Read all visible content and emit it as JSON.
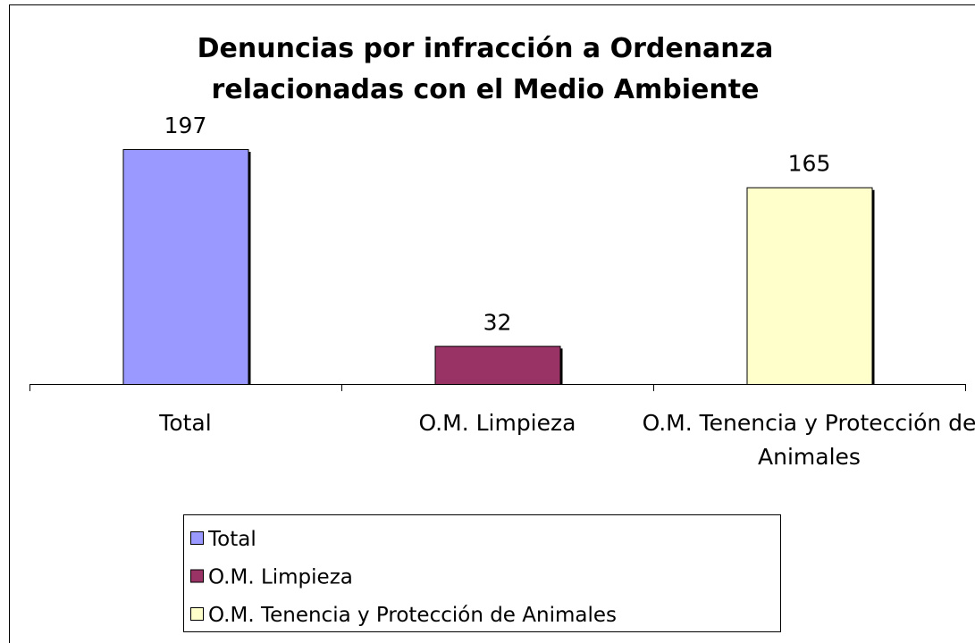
{
  "chart_data": {
    "type": "bar",
    "title": "Denuncias por infracción a Ordenanza relacionadas con el Medio Ambiente",
    "categories": [
      "Total",
      "O.M. Limpieza",
      "O.M. Tenencia y Protección de Animales"
    ],
    "values": [
      197,
      32,
      165
    ],
    "colors": [
      "#9999ff",
      "#993366",
      "#ffffcc"
    ],
    "legend": "bottom"
  }
}
